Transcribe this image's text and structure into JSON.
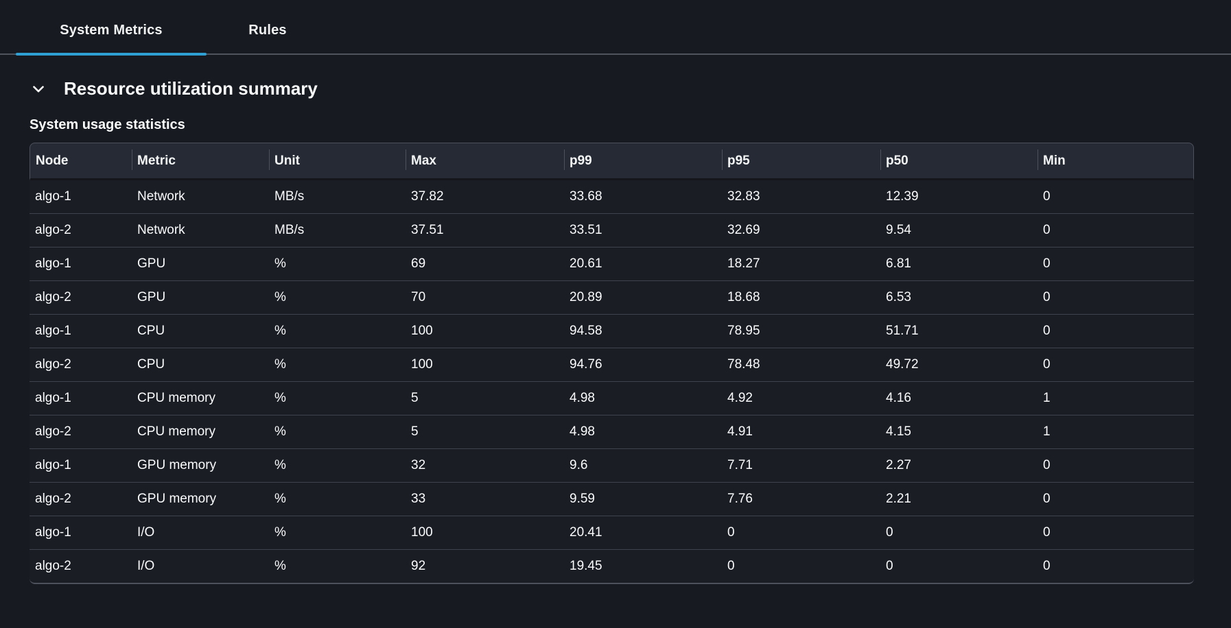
{
  "tabs": [
    {
      "label": "System Metrics",
      "active": true
    },
    {
      "label": "Rules",
      "active": false
    }
  ],
  "section": {
    "title": "Resource utilization summary",
    "chevron_icon": "chevron-down-icon",
    "expanded": true
  },
  "table": {
    "title": "System usage statistics",
    "columns": [
      "Node",
      "Metric",
      "Unit",
      "Max",
      "p99",
      "p95",
      "p50",
      "Min"
    ],
    "rows": [
      [
        "algo-1",
        "Network",
        "MB/s",
        "37.82",
        "33.68",
        "32.83",
        "12.39",
        "0"
      ],
      [
        "algo-2",
        "Network",
        "MB/s",
        "37.51",
        "33.51",
        "32.69",
        "9.54",
        "0"
      ],
      [
        "algo-1",
        "GPU",
        "%",
        "69",
        "20.61",
        "18.27",
        "6.81",
        "0"
      ],
      [
        "algo-2",
        "GPU",
        "%",
        "70",
        "20.89",
        "18.68",
        "6.53",
        "0"
      ],
      [
        "algo-1",
        "CPU",
        "%",
        "100",
        "94.58",
        "78.95",
        "51.71",
        "0"
      ],
      [
        "algo-2",
        "CPU",
        "%",
        "100",
        "94.76",
        "78.48",
        "49.72",
        "0"
      ],
      [
        "algo-1",
        "CPU memory",
        "%",
        "5",
        "4.98",
        "4.92",
        "4.16",
        "1"
      ],
      [
        "algo-2",
        "CPU memory",
        "%",
        "5",
        "4.98",
        "4.91",
        "4.15",
        "1"
      ],
      [
        "algo-1",
        "GPU memory",
        "%",
        "32",
        "9.6",
        "7.71",
        "2.27",
        "0"
      ],
      [
        "algo-2",
        "GPU memory",
        "%",
        "33",
        "9.59",
        "7.76",
        "2.21",
        "0"
      ],
      [
        "algo-1",
        "I/O",
        "%",
        "100",
        "20.41",
        "0",
        "0",
        "0"
      ],
      [
        "algo-2",
        "I/O",
        "%",
        "92",
        "19.45",
        "0",
        "0",
        "0"
      ]
    ]
  },
  "colors": {
    "background": "#171a21",
    "accent_tab_underline": "#2ea0d4",
    "tabstrip_border": "#50545c",
    "table_header_bg": "#252a34",
    "row_divider": "#3f434d",
    "table_border": "#4d515c",
    "text": "#fafbfc"
  }
}
